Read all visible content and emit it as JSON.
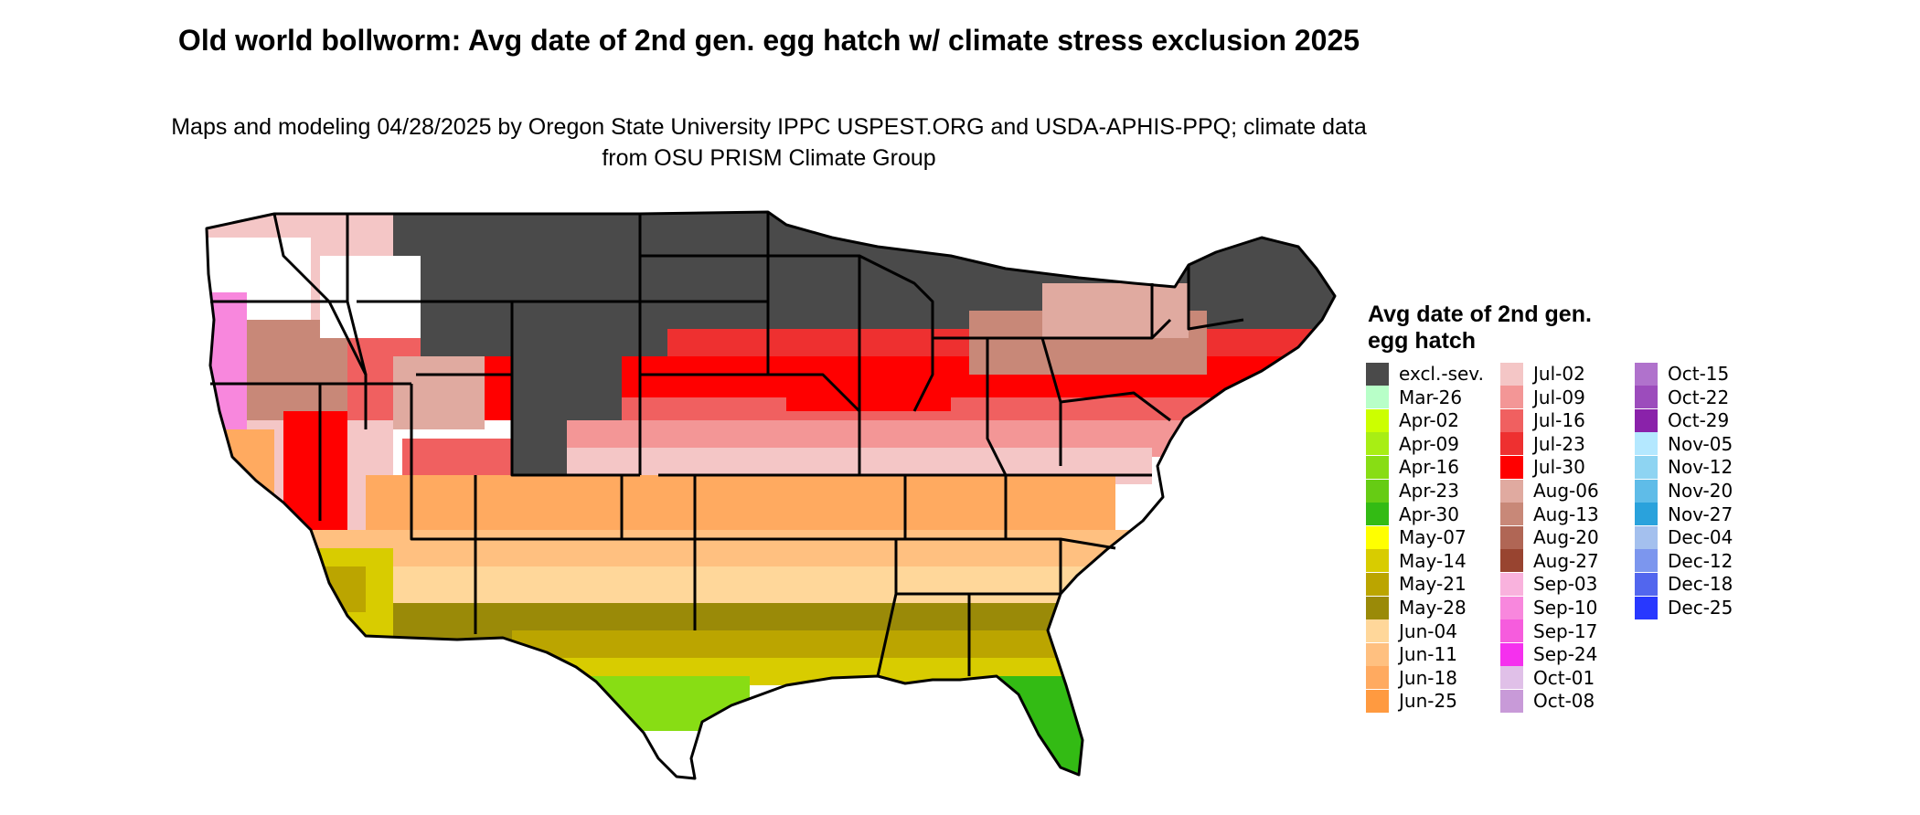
{
  "title": "Old world bollworm: Avg date of 2nd gen. egg hatch w/ climate stress exclusion 2025",
  "subtitle": "Maps and modeling 04/28/2025 by Oregon State University IPPC USPEST.ORG and USDA-APHIS-PPQ; climate data from OSU PRISM Climate Group",
  "legend": {
    "title": "Avg date of 2nd gen. egg hatch",
    "items": [
      {
        "label": "excl.-sev.",
        "color": "#4a4a4a"
      },
      {
        "label": "Mar-26",
        "color": "#b8ffc8"
      },
      {
        "label": "Apr-02",
        "color": "#ccff00"
      },
      {
        "label": "Apr-09",
        "color": "#a8ee14"
      },
      {
        "label": "Apr-16",
        "color": "#88dd14"
      },
      {
        "label": "Apr-23",
        "color": "#66cc14"
      },
      {
        "label": "Apr-30",
        "color": "#33bb14"
      },
      {
        "label": "May-07",
        "color": "#ffff00"
      },
      {
        "label": "May-14",
        "color": "#d8cc00"
      },
      {
        "label": "May-21",
        "color": "#bba500"
      },
      {
        "label": "May-28",
        "color": "#9a8a08"
      },
      {
        "label": "Jun-04",
        "color": "#ffd79a"
      },
      {
        "label": "Jun-11",
        "color": "#ffc080"
      },
      {
        "label": "Jun-18",
        "color": "#ffaa60"
      },
      {
        "label": "Jun-25",
        "color": "#ff9a40"
      },
      {
        "label": "Jul-02",
        "color": "#f4c6c6"
      },
      {
        "label": "Jul-09",
        "color": "#f39696"
      },
      {
        "label": "Jul-16",
        "color": "#f06060"
      },
      {
        "label": "Jul-23",
        "color": "#ee3030"
      },
      {
        "label": "Jul-30",
        "color": "#ff0000"
      },
      {
        "label": "Aug-06",
        "color": "#e0aaa0"
      },
      {
        "label": "Aug-13",
        "color": "#c88878"
      },
      {
        "label": "Aug-20",
        "color": "#b06655"
      },
      {
        "label": "Aug-27",
        "color": "#984430"
      },
      {
        "label": "Sep-03",
        "color": "#f9b2dd"
      },
      {
        "label": "Sep-10",
        "color": "#f887dd"
      },
      {
        "label": "Sep-17",
        "color": "#f65cdd"
      },
      {
        "label": "Sep-24",
        "color": "#f530ee"
      },
      {
        "label": "Oct-01",
        "color": "#e0c0e8"
      },
      {
        "label": "Oct-08",
        "color": "#c89ad8"
      },
      {
        "label": "Oct-15",
        "color": "#b072cc"
      },
      {
        "label": "Oct-22",
        "color": "#9c4cbc"
      },
      {
        "label": "Oct-29",
        "color": "#8a22aa"
      },
      {
        "label": "Nov-05",
        "color": "#b4e8ff"
      },
      {
        "label": "Nov-12",
        "color": "#8ed4f2"
      },
      {
        "label": "Nov-20",
        "color": "#5fbce8"
      },
      {
        "label": "Nov-27",
        "color": "#2aa2dc"
      },
      {
        "label": "Dec-04",
        "color": "#a4c0ee"
      },
      {
        "label": "Dec-12",
        "color": "#7c96ee"
      },
      {
        "label": "Dec-18",
        "color": "#5266ee"
      },
      {
        "label": "Dec-25",
        "color": "#2838ff"
      }
    ]
  }
}
